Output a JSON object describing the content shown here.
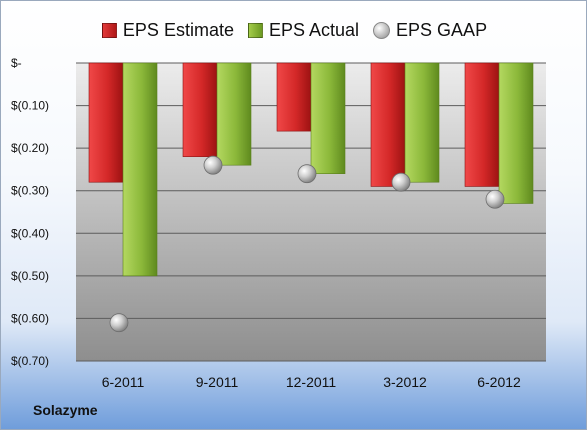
{
  "company": "Solazyme",
  "chart_data": {
    "type": "bar",
    "categories": [
      "6-2011",
      "9-2011",
      "12-2011",
      "3-2012",
      "6-2012"
    ],
    "series": [
      {
        "name": "EPS Estimate",
        "kind": "bar",
        "color": "#d42828",
        "values": [
          -0.28,
          -0.22,
          -0.16,
          -0.29,
          -0.29
        ]
      },
      {
        "name": "EPS Actual",
        "kind": "bar",
        "color": "#8bb83a",
        "values": [
          -0.5,
          -0.24,
          -0.26,
          -0.28,
          -0.33
        ]
      },
      {
        "name": "EPS GAAP",
        "kind": "marker",
        "color": "#b0b0b0",
        "values": [
          -0.61,
          -0.24,
          -0.26,
          -0.28,
          -0.32
        ]
      }
    ],
    "yticks": [
      {
        "value": 0,
        "label": "$-"
      },
      {
        "value": -0.1,
        "label": "$(0.10)"
      },
      {
        "value": -0.2,
        "label": "$(0.20)"
      },
      {
        "value": -0.3,
        "label": "$(0.30)"
      },
      {
        "value": -0.4,
        "label": "$(0.40)"
      },
      {
        "value": -0.5,
        "label": "$(0.50)"
      },
      {
        "value": -0.6,
        "label": "$(0.60)"
      },
      {
        "value": -0.7,
        "label": "$(0.70)"
      }
    ],
    "ylim": [
      -0.7,
      0
    ],
    "legend_position": "top",
    "grid": true,
    "xlabel": "",
    "ylabel": ""
  }
}
